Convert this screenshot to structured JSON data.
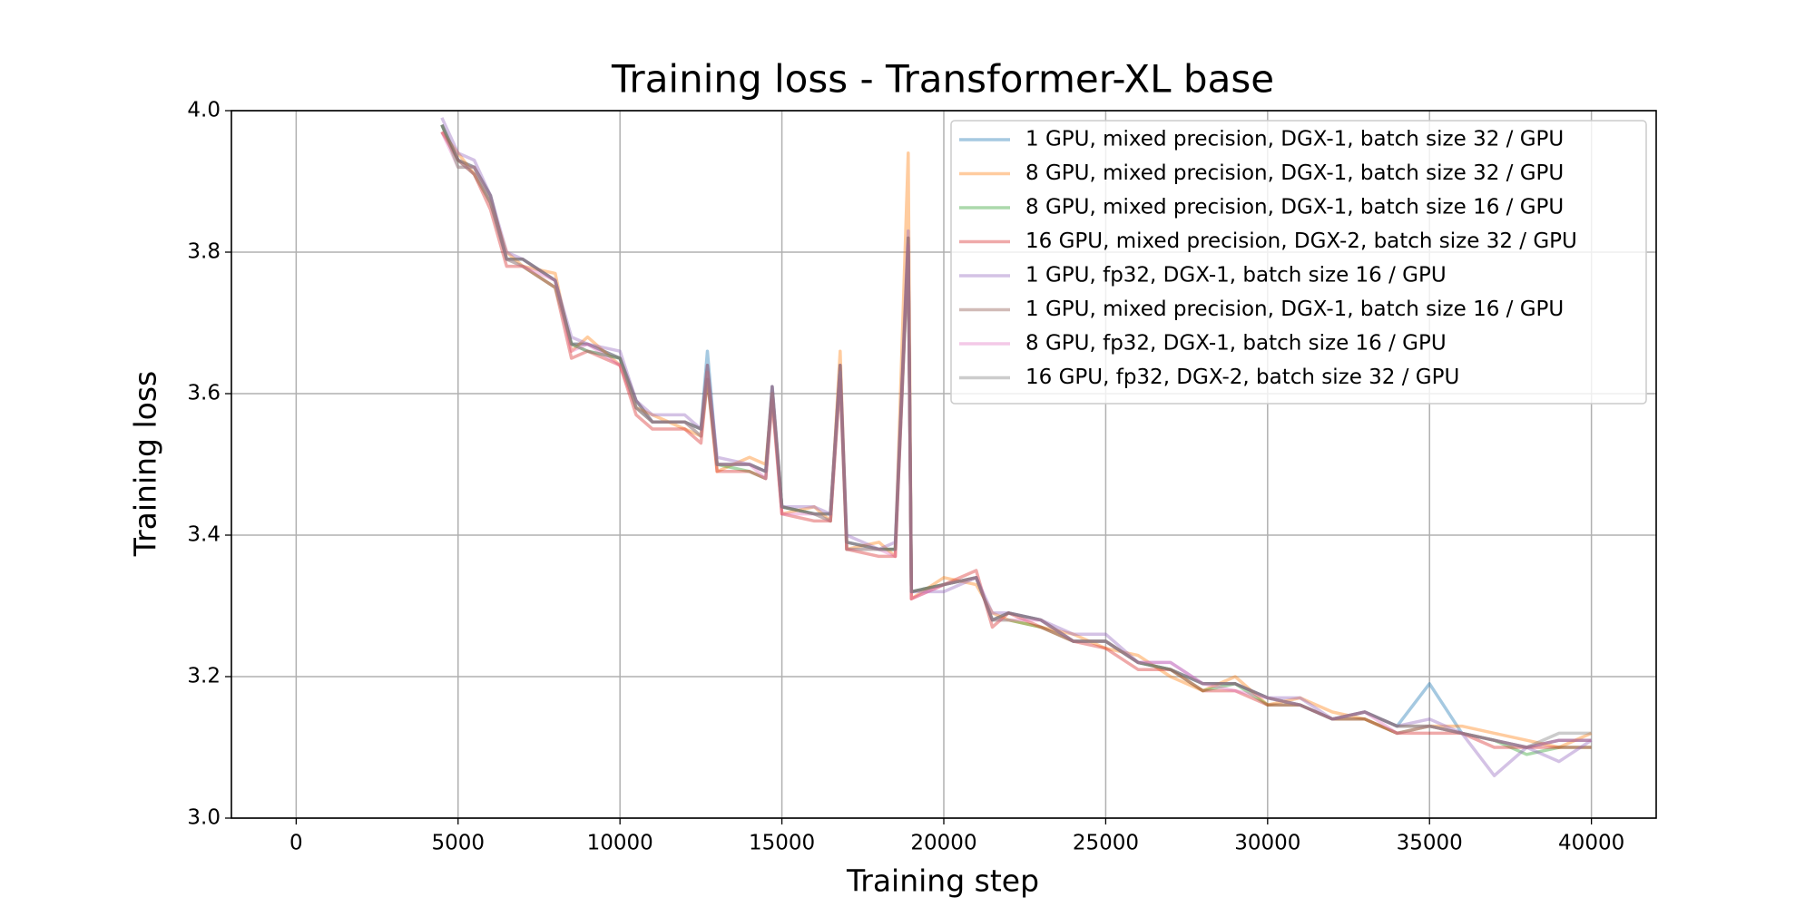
{
  "chart_data": {
    "type": "line",
    "title": "Training loss - Transformer-XL base",
    "x_label": "Training step",
    "y_label": "Training loss",
    "xlim": [
      -2000,
      42000
    ],
    "xticks": [
      0,
      5000,
      10000,
      15000,
      20000,
      25000,
      30000,
      35000,
      40000
    ],
    "ylim": [
      3.0,
      4.0
    ],
    "yticks": [
      {
        "value": 3.0,
        "label": "3.0"
      },
      3.2,
      3.4,
      3.6,
      3.8,
      {
        "value": 4.0,
        "label": "4.0"
      }
    ],
    "grid": true,
    "legend": "upper right",
    "x": [
      4500,
      5000,
      5500,
      6000,
      6500,
      7000,
      8000,
      8500,
      9000,
      10000,
      10500,
      11000,
      12000,
      12500,
      12700,
      13000,
      14000,
      14500,
      14700,
      15000,
      16000,
      16500,
      16800,
      17000,
      18000,
      18500,
      18900,
      19000,
      20000,
      21000,
      21500,
      22000,
      23000,
      24000,
      25000,
      26000,
      27000,
      28000,
      29000,
      30000,
      31000,
      32000,
      33000,
      34000,
      35000,
      36000,
      37000,
      38000,
      39000,
      40000
    ],
    "series": [
      {
        "name": "1 GPU, mixed precision, DGX-1, batch size 32 / GPU",
        "color": "#1f77b4",
        "values": [
          3.98,
          3.93,
          3.92,
          3.88,
          3.79,
          3.79,
          3.76,
          3.67,
          3.67,
          3.65,
          3.59,
          3.56,
          3.56,
          3.55,
          3.66,
          3.5,
          3.5,
          3.49,
          3.61,
          3.44,
          3.43,
          3.43,
          3.64,
          3.39,
          3.38,
          3.38,
          3.82,
          3.32,
          3.33,
          3.34,
          3.28,
          3.29,
          3.28,
          3.25,
          3.25,
          3.22,
          3.21,
          3.19,
          3.19,
          3.17,
          3.16,
          3.14,
          3.15,
          3.13,
          3.19,
          3.12,
          3.11,
          3.1,
          3.11,
          3.11
        ]
      },
      {
        "name": "8 GPU, mixed precision, DGX-1, batch size 32 / GPU",
        "color": "#ff7f0e",
        "values": [
          3.97,
          3.94,
          3.91,
          3.87,
          3.8,
          3.78,
          3.77,
          3.66,
          3.68,
          3.64,
          3.58,
          3.57,
          3.55,
          3.54,
          3.63,
          3.49,
          3.51,
          3.5,
          3.6,
          3.43,
          3.44,
          3.42,
          3.66,
          3.38,
          3.39,
          3.37,
          3.94,
          3.31,
          3.34,
          3.33,
          3.29,
          3.28,
          3.27,
          3.26,
          3.24,
          3.23,
          3.2,
          3.18,
          3.2,
          3.16,
          3.17,
          3.15,
          3.14,
          3.12,
          3.13,
          3.13,
          3.12,
          3.11,
          3.1,
          3.12
        ]
      },
      {
        "name": "8 GPU, mixed precision, DGX-1, batch size 16 / GPU",
        "color": "#2ca02c",
        "values": [
          3.98,
          3.92,
          3.92,
          3.87,
          3.79,
          3.78,
          3.75,
          3.67,
          3.66,
          3.65,
          3.58,
          3.56,
          3.56,
          3.54,
          3.62,
          3.5,
          3.49,
          3.48,
          3.6,
          3.44,
          3.43,
          3.42,
          3.63,
          3.38,
          3.38,
          3.38,
          3.8,
          3.32,
          3.33,
          3.34,
          3.28,
          3.28,
          3.27,
          3.25,
          3.25,
          3.22,
          3.21,
          3.18,
          3.19,
          3.16,
          3.16,
          3.14,
          3.14,
          3.12,
          3.13,
          3.12,
          3.11,
          3.09,
          3.1,
          3.1
        ]
      },
      {
        "name": "16 GPU, mixed precision, DGX-2, batch size 32 / GPU",
        "color": "#d62728",
        "values": [
          3.97,
          3.93,
          3.91,
          3.86,
          3.78,
          3.78,
          3.75,
          3.65,
          3.66,
          3.64,
          3.57,
          3.55,
          3.55,
          3.53,
          3.62,
          3.49,
          3.49,
          3.48,
          3.59,
          3.43,
          3.42,
          3.42,
          3.62,
          3.38,
          3.37,
          3.37,
          3.81,
          3.31,
          3.33,
          3.35,
          3.27,
          3.29,
          3.27,
          3.25,
          3.24,
          3.21,
          3.21,
          3.18,
          3.18,
          3.16,
          3.16,
          3.14,
          3.14,
          3.12,
          3.12,
          3.12,
          3.1,
          3.1,
          3.1,
          3.1
        ]
      },
      {
        "name": "1 GPU, fp32, DGX-1, batch size 16 / GPU",
        "color": "#9467bd",
        "values": [
          3.99,
          3.94,
          3.93,
          3.88,
          3.8,
          3.79,
          3.76,
          3.68,
          3.67,
          3.66,
          3.59,
          3.57,
          3.57,
          3.55,
          3.64,
          3.51,
          3.5,
          3.49,
          3.61,
          3.44,
          3.44,
          3.43,
          3.64,
          3.4,
          3.38,
          3.39,
          3.83,
          3.32,
          3.32,
          3.34,
          3.29,
          3.29,
          3.28,
          3.26,
          3.26,
          3.22,
          3.22,
          3.19,
          3.19,
          3.17,
          3.17,
          3.14,
          3.15,
          3.13,
          3.14,
          3.12,
          3.06,
          3.1,
          3.08,
          3.11
        ]
      },
      {
        "name": "1 GPU, mixed precision, DGX-1, batch size 16 / GPU",
        "color": "#8c564b",
        "values": [
          3.98,
          3.93,
          3.92,
          3.88,
          3.79,
          3.79,
          3.76,
          3.67,
          3.67,
          3.65,
          3.59,
          3.56,
          3.56,
          3.55,
          3.64,
          3.5,
          3.5,
          3.49,
          3.61,
          3.44,
          3.43,
          3.43,
          3.64,
          3.39,
          3.38,
          3.38,
          3.82,
          3.32,
          3.33,
          3.34,
          3.28,
          3.29,
          3.28,
          3.25,
          3.25,
          3.22,
          3.21,
          3.19,
          3.19,
          3.17,
          3.16,
          3.14,
          3.15,
          3.13,
          3.13,
          3.12,
          3.11,
          3.1,
          3.11,
          3.11
        ]
      },
      {
        "name": "8 GPU, fp32, DGX-1, batch size 16 / GPU",
        "color": "#e377c2",
        "values": [
          3.97,
          3.92,
          3.92,
          3.87,
          3.79,
          3.78,
          3.76,
          3.66,
          3.67,
          3.64,
          3.58,
          3.56,
          3.56,
          3.54,
          3.63,
          3.5,
          3.5,
          3.48,
          3.6,
          3.43,
          3.43,
          3.42,
          3.63,
          3.38,
          3.38,
          3.37,
          3.81,
          3.31,
          3.33,
          3.34,
          3.28,
          3.28,
          3.28,
          3.25,
          3.25,
          3.22,
          3.22,
          3.19,
          3.18,
          3.17,
          3.16,
          3.14,
          3.15,
          3.12,
          3.13,
          3.12,
          3.11,
          3.1,
          3.11,
          3.11
        ]
      },
      {
        "name": "16 GPU, fp32, DGX-2, batch size 32 / GPU",
        "color": "#7f7f7f",
        "values": [
          3.98,
          3.93,
          3.91,
          3.87,
          3.79,
          3.79,
          3.76,
          3.67,
          3.66,
          3.65,
          3.58,
          3.56,
          3.56,
          3.55,
          3.63,
          3.5,
          3.5,
          3.49,
          3.6,
          3.44,
          3.43,
          3.43,
          3.63,
          3.39,
          3.38,
          3.38,
          3.81,
          3.32,
          3.33,
          3.34,
          3.28,
          3.29,
          3.28,
          3.25,
          3.25,
          3.22,
          3.21,
          3.19,
          3.19,
          3.17,
          3.16,
          3.14,
          3.15,
          3.13,
          3.13,
          3.12,
          3.11,
          3.1,
          3.12,
          3.12
        ]
      }
    ]
  }
}
